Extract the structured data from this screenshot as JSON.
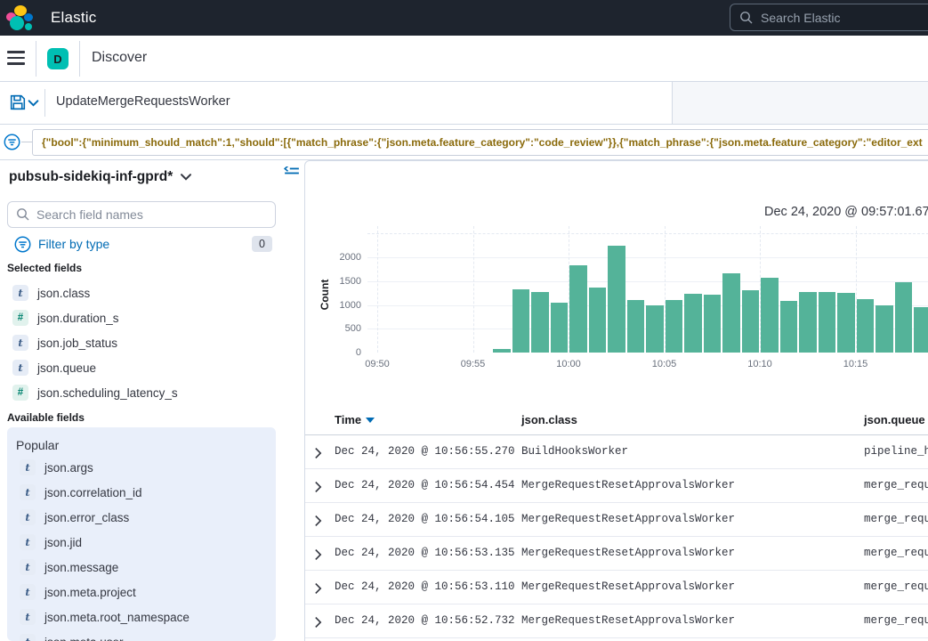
{
  "app": {
    "title": "Elastic"
  },
  "header": {
    "search_placeholder": "Search Elastic"
  },
  "nav": {
    "app_initial": "D",
    "breadcrumb": "Discover"
  },
  "query_bar": {
    "query": "UpdateMergeRequestsWorker"
  },
  "filter_bar": {
    "pill_text": "{\"bool\":{\"minimum_should_match\":1,\"should\":[{\"match_phrase\":{\"json.meta.feature_category\":\"code_review\"}},{\"match_phrase\":{\"json.meta.feature_category\":\"editor_ext"
  },
  "sidebar": {
    "index_pattern": "pubsub-sidekiq-inf-gprd*",
    "search_placeholder": "Search field names",
    "filter_by_type_label": "Filter by type",
    "filter_by_type_count": "0",
    "selected_fields_label": "Selected fields",
    "selected_fields": [
      {
        "type": "t",
        "name": "json.class"
      },
      {
        "type": "#",
        "name": "json.duration_s"
      },
      {
        "type": "t",
        "name": "json.job_status"
      },
      {
        "type": "t",
        "name": "json.queue"
      },
      {
        "type": "#",
        "name": "json.scheduling_latency_s"
      }
    ],
    "available_fields_label": "Available fields",
    "popular_label": "Popular",
    "popular_fields": [
      {
        "type": "t",
        "name": "json.args"
      },
      {
        "type": "t",
        "name": "json.correlation_id"
      },
      {
        "type": "t",
        "name": "json.error_class"
      },
      {
        "type": "t",
        "name": "json.jid"
      },
      {
        "type": "t",
        "name": "json.message"
      },
      {
        "type": "t",
        "name": "json.meta.project"
      },
      {
        "type": "t",
        "name": "json.meta.root_namespace"
      },
      {
        "type": "t",
        "name": "json.meta.user"
      }
    ]
  },
  "main": {
    "chart_header": "Dec 24, 2020 @ 09:57:01.67",
    "table": {
      "columns": [
        "Time",
        "json.class",
        "json.queue"
      ],
      "sorted_column": "Time",
      "rows": [
        {
          "time": "Dec 24, 2020 @ 10:56:55.270",
          "class": "BuildHooksWorker",
          "queue": "pipeline_h"
        },
        {
          "time": "Dec 24, 2020 @ 10:56:54.454",
          "class": "MergeRequestResetApprovalsWorker",
          "queue": "merge_requ"
        },
        {
          "time": "Dec 24, 2020 @ 10:56:54.105",
          "class": "MergeRequestResetApprovalsWorker",
          "queue": "merge_requ"
        },
        {
          "time": "Dec 24, 2020 @ 10:56:53.135",
          "class": "MergeRequestResetApprovalsWorker",
          "queue": "merge_requ"
        },
        {
          "time": "Dec 24, 2020 @ 10:56:53.110",
          "class": "MergeRequestResetApprovalsWorker",
          "queue": "merge_requ"
        },
        {
          "time": "Dec 24, 2020 @ 10:56:52.732",
          "class": "MergeRequestResetApprovalsWorker",
          "queue": "merge_requ"
        }
      ]
    }
  },
  "chart_data": {
    "type": "bar",
    "title": "Dec 24, 2020 @ 09:57:01.67",
    "xlabel": "",
    "ylabel": "Count",
    "x_tick_labels": [
      "09:50",
      "09:55",
      "10:00",
      "10:05",
      "10:10",
      "10:15"
    ],
    "y_ticks": [
      0,
      500,
      1000,
      1500,
      2000
    ],
    "ylim": [
      0,
      2400
    ],
    "grid": true,
    "bucket_start": "09:56",
    "bucket_interval_minutes": 1,
    "values": [
      70,
      1330,
      1270,
      1050,
      1830,
      1370,
      2240,
      1100,
      1000,
      1100,
      1230,
      1210,
      1670,
      1310,
      1570,
      1090,
      1270,
      1280,
      1260,
      1120,
      990,
      1470,
      960
    ],
    "bar_color": "#54B399"
  },
  "colors": {
    "header_bg": "#1e242e",
    "accent_teal": "#00bfb3",
    "link_blue": "#006bb4",
    "bar_green": "#54B399",
    "filter_text": "#8a6a0b",
    "border": "#d3dae6",
    "popular_panel_bg": "#e9effa"
  }
}
